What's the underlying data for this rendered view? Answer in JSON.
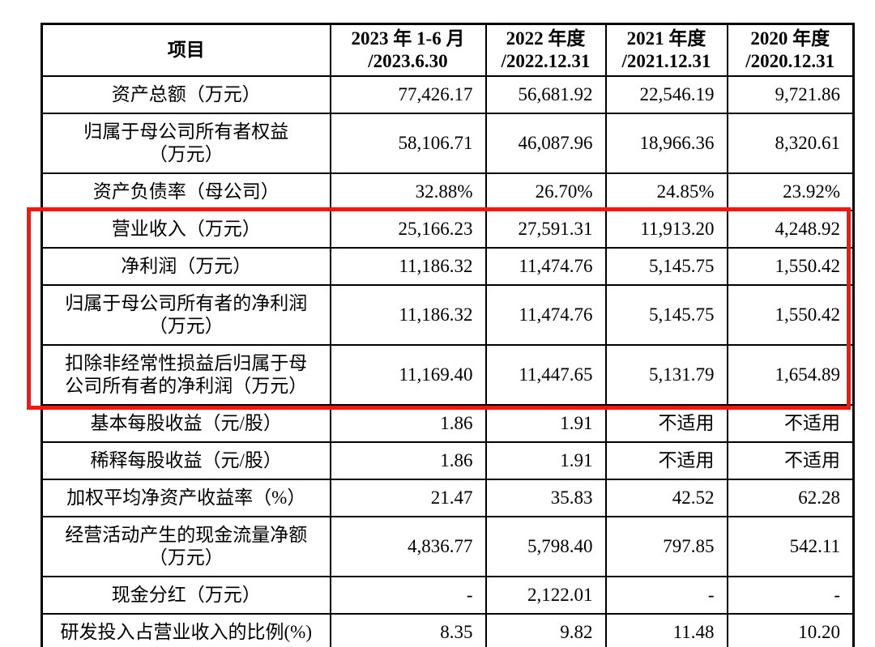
{
  "table": {
    "header": {
      "item_col": "项目",
      "period_cols": [
        "2023 年 1-6 月\n/2023.6.30",
        "2022 年度\n/2022.12.31",
        "2021 年度\n/2021.12.31",
        "2020 年度\n/2020.12.31"
      ]
    },
    "rows": [
      {
        "label": "资产总额（万元）",
        "values": [
          "77,426.17",
          "56,681.92",
          "22,546.19",
          "9,721.86"
        ],
        "highlighted": false
      },
      {
        "label": "归属于母公司所有者权益\n（万元）",
        "values": [
          "58,106.71",
          "46,087.96",
          "18,966.36",
          "8,320.61"
        ],
        "highlighted": false
      },
      {
        "label": "资产负债率（母公司）",
        "values": [
          "32.88%",
          "26.70%",
          "24.85%",
          "23.92%"
        ],
        "highlighted": false
      },
      {
        "label": "营业收入（万元）",
        "values": [
          "25,166.23",
          "27,591.31",
          "11,913.20",
          "4,248.92"
        ],
        "highlighted": true
      },
      {
        "label": "净利润（万元）",
        "values": [
          "11,186.32",
          "11,474.76",
          "5,145.75",
          "1,550.42"
        ],
        "highlighted": true
      },
      {
        "label": "归属于母公司所有者的净利润\n（万元）",
        "values": [
          "11,186.32",
          "11,474.76",
          "5,145.75",
          "1,550.42"
        ],
        "highlighted": true
      },
      {
        "label": "扣除非经常性损益后归属于母\n公司所有者的净利润（万元）",
        "values": [
          "11,169.40",
          "11,447.65",
          "5,131.79",
          "1,654.89"
        ],
        "highlighted": true
      },
      {
        "label": "基本每股收益（元/股）",
        "values": [
          "1.86",
          "1.91",
          "不适用",
          "不适用"
        ],
        "highlighted": false
      },
      {
        "label": "稀释每股收益（元/股）",
        "values": [
          "1.86",
          "1.91",
          "不适用",
          "不适用"
        ],
        "highlighted": false
      },
      {
        "label": "加权平均净资产收益率（%）",
        "values": [
          "21.47",
          "35.83",
          "42.52",
          "62.28"
        ],
        "highlighted": false
      },
      {
        "label": "经营活动产生的现金流量净额\n（万元）",
        "values": [
          "4,836.77",
          "5,798.40",
          "797.85",
          "542.11"
        ],
        "highlighted": false
      },
      {
        "label": "现金分红（万元）",
        "values": [
          "-",
          "2,122.01",
          "-",
          "-"
        ],
        "highlighted": false
      },
      {
        "label": "研发投入占营业收入的比例(%)",
        "values": [
          "8.35",
          "9.82",
          "11.48",
          "10.20"
        ],
        "highlighted": false
      }
    ],
    "highlight_color": "#fb150c",
    "border_color": "#000000",
    "text_color": "#000000"
  }
}
